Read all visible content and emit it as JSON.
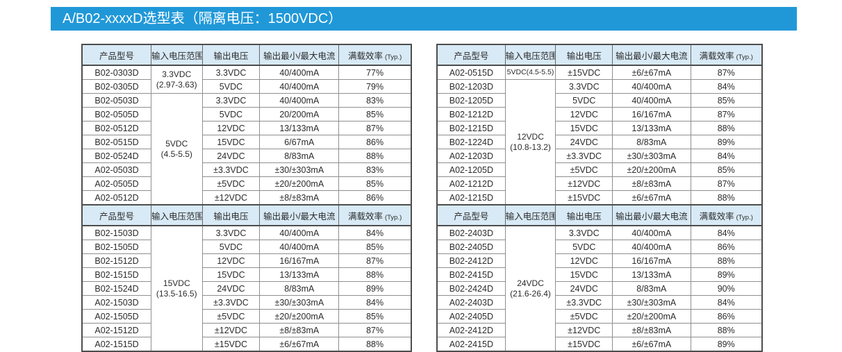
{
  "title": "A/B02-xxxxD选型表（隔离电压：1500VDC）",
  "accent_color": "#2098d8",
  "header_bg_color": "#d8eaf6",
  "columns": [
    "产品型号",
    "输入电压范围",
    "输出电压",
    "输出最小/最大电流",
    "满载效率"
  ],
  "eff_typ_suffix": "(Typ.)",
  "tables": [
    {
      "name": "top-left",
      "input_groups": [
        {
          "lines": [
            "3.3VDC",
            "(2.97-3.63)"
          ],
          "span": 2
        },
        {
          "lines": [
            "5VDC",
            "(4.5-5.5)"
          ],
          "span": 8
        }
      ],
      "rows": [
        {
          "model": "B02-0303D",
          "vout": "3.3VDC",
          "iout": "40/400mA",
          "eff": "77%"
        },
        {
          "model": "B02-0305D",
          "vout": "5VDC",
          "iout": "40/400mA",
          "eff": "79%"
        },
        {
          "model": "B02-0503D",
          "vout": "3.3VDC",
          "iout": "40/400mA",
          "eff": "83%"
        },
        {
          "model": "B02-0505D",
          "vout": "5VDC",
          "iout": "20/200mA",
          "eff": "85%"
        },
        {
          "model": "B02-0512D",
          "vout": "12VDC",
          "iout": "13/133mA",
          "eff": "87%"
        },
        {
          "model": "B02-0515D",
          "vout": "15VDC",
          "iout": "6/67mA",
          "eff": "86%"
        },
        {
          "model": "B02-0524D",
          "vout": "24VDC",
          "iout": "8/83mA",
          "eff": "88%"
        },
        {
          "model": "A02-0503D",
          "vout": "±3.3VDC",
          "iout": "±30/±303mA",
          "eff": "83%"
        },
        {
          "model": "A02-0505D",
          "vout": "±5VDC",
          "iout": "±20/±200mA",
          "eff": "85%"
        },
        {
          "model": "A02-0512D",
          "vout": "±12VDC",
          "iout": "±8/±83mA",
          "eff": "86%"
        }
      ]
    },
    {
      "name": "top-right",
      "input_groups": [
        {
          "lines": [
            "5VDC(4.5-5.5)"
          ],
          "span": 1
        },
        {
          "lines": [
            "12VDC",
            "(10.8-13.2)"
          ],
          "span": 9
        }
      ],
      "rows": [
        {
          "model": "A02-0515D",
          "vout": "±15VDC",
          "iout": "±6/±67mA",
          "eff": "87%"
        },
        {
          "model": "B02-1203D",
          "vout": "3.3VDC",
          "iout": "40/400mA",
          "eff": "84%"
        },
        {
          "model": "B02-1205D",
          "vout": "5VDC",
          "iout": "40/400mA",
          "eff": "85%"
        },
        {
          "model": "B02-1212D",
          "vout": "12VDC",
          "iout": "16/167mA",
          "eff": "87%"
        },
        {
          "model": "B02-1215D",
          "vout": "15VDC",
          "iout": "13/133mA",
          "eff": "88%"
        },
        {
          "model": "B02-1224D",
          "vout": "24VDC",
          "iout": "8/83mA",
          "eff": "89%"
        },
        {
          "model": "A02-1203D",
          "vout": "±3.3VDC",
          "iout": "±30/±303mA",
          "eff": "84%"
        },
        {
          "model": "A02-1205D",
          "vout": "±5VDC",
          "iout": "±20/±200mA",
          "eff": "85%"
        },
        {
          "model": "A02-1212D",
          "vout": "±12VDC",
          "iout": "±8/±83mA",
          "eff": "87%"
        },
        {
          "model": "A02-1215D",
          "vout": "±15VDC",
          "iout": "±6/±67mA",
          "eff": "88%"
        }
      ]
    },
    {
      "name": "bottom-left",
      "input_groups": [
        {
          "lines": [
            "15VDC",
            "(13.5-16.5)"
          ],
          "span": 9
        }
      ],
      "rows": [
        {
          "model": "B02-1503D",
          "vout": "3.3VDC",
          "iout": "40/400mA",
          "eff": "84%"
        },
        {
          "model": "B02-1505D",
          "vout": "5VDC",
          "iout": "40/400mA",
          "eff": "85%"
        },
        {
          "model": "B02-1512D",
          "vout": "12VDC",
          "iout": "16/167mA",
          "eff": "87%"
        },
        {
          "model": "B02-1515D",
          "vout": "15VDC",
          "iout": "13/133mA",
          "eff": "88%"
        },
        {
          "model": "B02-1524D",
          "vout": "24VDC",
          "iout": "8/83mA",
          "eff": "89%"
        },
        {
          "model": "A02-1503D",
          "vout": "±3.3VDC",
          "iout": "±30/±303mA",
          "eff": "84%"
        },
        {
          "model": "A02-1505D",
          "vout": "±5VDC",
          "iout": "±20/±200mA",
          "eff": "85%"
        },
        {
          "model": "A02-1512D",
          "vout": "±12VDC",
          "iout": "±8/±83mA",
          "eff": "87%"
        },
        {
          "model": "A02-1515D",
          "vout": "±15VDC",
          "iout": "±6/±67mA",
          "eff": "88%"
        }
      ]
    },
    {
      "name": "bottom-right",
      "input_groups": [
        {
          "lines": [
            "24VDC",
            "(21.6-26.4)"
          ],
          "span": 9
        }
      ],
      "rows": [
        {
          "model": "B02-2403D",
          "vout": "3.3VDC",
          "iout": "40/400mA",
          "eff": "84%"
        },
        {
          "model": "B02-2405D",
          "vout": "5VDC",
          "iout": "40/400mA",
          "eff": "86%"
        },
        {
          "model": "B02-2412D",
          "vout": "12VDC",
          "iout": "16/167mA",
          "eff": "88%"
        },
        {
          "model": "B02-2415D",
          "vout": "15VDC",
          "iout": "13/133mA",
          "eff": "89%"
        },
        {
          "model": "B02-2424D",
          "vout": "24VDC",
          "iout": "8/83mA",
          "eff": "90%"
        },
        {
          "model": "A02-2403D",
          "vout": "±3.3VDC",
          "iout": "±30/±303mA",
          "eff": "84%"
        },
        {
          "model": "A02-2405D",
          "vout": "±5VDC",
          "iout": "±20/±200mA",
          "eff": "86%"
        },
        {
          "model": "A02-2412D",
          "vout": "±12VDC",
          "iout": "±8/±83mA",
          "eff": "88%"
        },
        {
          "model": "A02-2415D",
          "vout": "±15VDC",
          "iout": "±6/±67mA",
          "eff": "89%"
        }
      ]
    }
  ]
}
